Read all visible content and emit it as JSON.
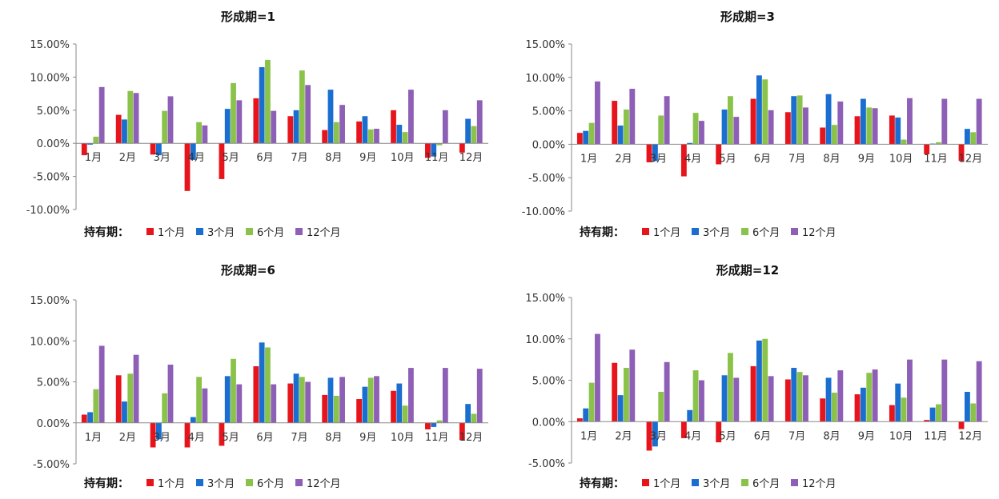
{
  "legend": {
    "title": "持有期：",
    "series_names": [
      "1个月",
      "3个月",
      "6个月",
      "12个月"
    ]
  },
  "colors": [
    "#e8141c",
    "#1a6ed0",
    "#8bc34a",
    "#8e5fb6"
  ],
  "categories": [
    "1月",
    "2月",
    "3月",
    "4月",
    "5月",
    "6月",
    "7月",
    "8月",
    "9月",
    "10月",
    "11月",
    "12月"
  ],
  "chart_data": [
    {
      "type": "bar",
      "title": "形成期=1",
      "categories": [
        "1月",
        "2月",
        "3月",
        "4月",
        "5月",
        "6月",
        "7月",
        "8月",
        "9月",
        "10月",
        "11月",
        "12月"
      ],
      "ylim": [
        -0.1,
        0.15
      ],
      "yticks": [
        0.15,
        0.1,
        0.05,
        0.0,
        -0.05,
        -0.1
      ],
      "ytick_labels": [
        "15.00%",
        "10.00%",
        "5.00%",
        "0.00%",
        "-5.00%",
        "-10.00%"
      ],
      "series": [
        {
          "name": "1个月",
          "values": [
            -0.018,
            0.043,
            -0.017,
            -0.072,
            -0.054,
            0.068,
            0.041,
            0.02,
            0.033,
            0.05,
            -0.022,
            -0.014
          ]
        },
        {
          "name": "3个月",
          "values": [
            -0.002,
            0.036,
            -0.018,
            -0.025,
            0.052,
            0.115,
            0.05,
            0.081,
            0.041,
            0.028,
            -0.02,
            0.037
          ]
        },
        {
          "name": "6个月",
          "values": [
            0.01,
            0.079,
            0.049,
            0.032,
            0.091,
            0.126,
            0.11,
            0.032,
            0.021,
            0.017,
            -0.003,
            0.026
          ]
        },
        {
          "name": "12个月",
          "values": [
            0.085,
            0.076,
            0.071,
            0.027,
            0.065,
            0.049,
            0.088,
            0.058,
            0.022,
            0.081,
            0.05,
            0.065
          ]
        }
      ]
    },
    {
      "type": "bar",
      "title": "形成期=3",
      "categories": [
        "1月",
        "2月",
        "3月",
        "4月",
        "5月",
        "6月",
        "7月",
        "8月",
        "9月",
        "10月",
        "11月",
        "12月"
      ],
      "ylim": [
        -0.1,
        0.15
      ],
      "yticks": [
        0.15,
        0.1,
        0.05,
        0.0,
        -0.05,
        -0.1
      ],
      "ytick_labels": [
        "15.00%",
        "10.00%",
        "5.00%",
        "0.00%",
        "-5.00%",
        "-10.00%"
      ],
      "series": [
        {
          "name": "1个月",
          "values": [
            0.017,
            0.065,
            -0.027,
            -0.048,
            -0.03,
            0.068,
            0.048,
            0.025,
            0.042,
            0.043,
            -0.015,
            -0.025
          ]
        },
        {
          "name": "3个月",
          "values": [
            0.02,
            0.028,
            -0.025,
            0.002,
            0.052,
            0.103,
            0.072,
            0.075,
            0.068,
            0.04,
            0.001,
            0.023
          ]
        },
        {
          "name": "6个月",
          "values": [
            0.032,
            0.052,
            0.043,
            0.047,
            0.072,
            0.097,
            0.073,
            0.029,
            0.055,
            0.007,
            0.003,
            0.018
          ]
        },
        {
          "name": "12个月",
          "values": [
            0.094,
            0.083,
            0.072,
            0.035,
            0.041,
            0.051,
            0.055,
            0.064,
            0.054,
            0.069,
            0.068,
            0.068
          ]
        }
      ]
    },
    {
      "type": "bar",
      "title": "形成期=6",
      "categories": [
        "1月",
        "2月",
        "3月",
        "4月",
        "5月",
        "6月",
        "7月",
        "8月",
        "9月",
        "10月",
        "11月",
        "12月"
      ],
      "ylim": [
        -0.05,
        0.15
      ],
      "yticks": [
        0.15,
        0.1,
        0.05,
        0.0,
        -0.05
      ],
      "ytick_labels": [
        "15.00%",
        "10.00%",
        "5.00%",
        "0.00%",
        "-5.00%"
      ],
      "series": [
        {
          "name": "1个月",
          "values": [
            0.01,
            0.058,
            -0.03,
            -0.03,
            -0.028,
            0.069,
            0.048,
            0.034,
            0.029,
            0.039,
            -0.008,
            -0.021
          ]
        },
        {
          "name": "3个月",
          "values": [
            0.013,
            0.026,
            -0.02,
            0.007,
            0.057,
            0.098,
            0.06,
            0.055,
            0.044,
            0.048,
            -0.005,
            0.023
          ]
        },
        {
          "name": "6个月",
          "values": [
            0.041,
            0.06,
            0.036,
            0.056,
            0.078,
            0.092,
            0.056,
            0.033,
            0.055,
            0.021,
            0.003,
            0.011
          ]
        },
        {
          "name": "12个月",
          "values": [
            0.094,
            0.083,
            0.071,
            0.042,
            0.047,
            0.047,
            0.05,
            0.056,
            0.057,
            0.067,
            0.067,
            0.066
          ]
        }
      ]
    },
    {
      "type": "bar",
      "title": "形成期=12",
      "categories": [
        "1月",
        "2月",
        "3月",
        "4月",
        "5月",
        "6月",
        "7月",
        "8月",
        "9月",
        "10月",
        "11月",
        "12月"
      ],
      "ylim": [
        -0.05,
        0.15
      ],
      "yticks": [
        0.15,
        0.1,
        0.05,
        0.0,
        -0.05
      ],
      "ytick_labels": [
        "15.00%",
        "10.00%",
        "5.00%",
        "0.00%",
        "-5.00%"
      ],
      "series": [
        {
          "name": "1个月",
          "values": [
            0.004,
            0.071,
            -0.035,
            -0.02,
            -0.025,
            0.067,
            0.051,
            0.028,
            0.033,
            0.02,
            0.002,
            -0.009
          ]
        },
        {
          "name": "3个月",
          "values": [
            0.016,
            0.032,
            -0.03,
            0.014,
            0.056,
            0.098,
            0.065,
            0.053,
            0.041,
            0.046,
            0.017,
            0.036
          ]
        },
        {
          "name": "6个月",
          "values": [
            0.047,
            0.065,
            0.036,
            0.062,
            0.083,
            0.1,
            0.06,
            0.035,
            0.059,
            0.029,
            0.021,
            0.022
          ]
        },
        {
          "name": "12个月",
          "values": [
            0.106,
            0.087,
            0.072,
            0.05,
            0.053,
            0.055,
            0.056,
            0.062,
            0.063,
            0.075,
            0.075,
            0.073
          ]
        }
      ]
    }
  ]
}
